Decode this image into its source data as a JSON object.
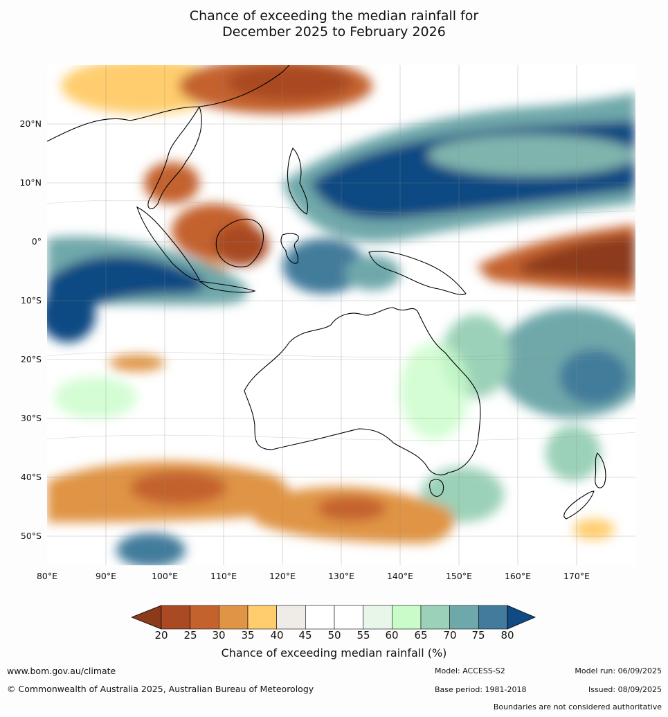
{
  "title": {
    "line1": "Chance of exceeding the median rainfall for",
    "line2": "December 2025 to February 2026"
  },
  "map": {
    "region": "Australia and surrounding region",
    "lat_labels": [
      "20°N",
      "10°N",
      "0°",
      "10°S",
      "20°S",
      "30°S",
      "40°S",
      "50°S"
    ],
    "lon_labels": [
      "80°E",
      "90°E",
      "100°E",
      "110°E",
      "120°E",
      "130°E",
      "140°E",
      "150°E",
      "160°E",
      "170°E"
    ],
    "lat_range": [
      -55,
      30
    ],
    "lon_range": [
      80,
      180
    ],
    "grid": true
  },
  "legend": {
    "ticks": [
      "20",
      "25",
      "30",
      "35",
      "40",
      "45",
      "50",
      "55",
      "60",
      "65",
      "70",
      "75",
      "80"
    ],
    "colors": [
      "#a94a24",
      "#c4622e",
      "#e09445",
      "#ffcd6e",
      "#efebe7",
      "#ffffff",
      "#ffffff",
      "#e8f5e9",
      "#c9fcc9",
      "#9bd1b8",
      "#6fa8aa",
      "#427b9b"
    ],
    "under_color": "#8c3a1c",
    "over_color": "#0f4a82",
    "label": "Chance of exceeding median rainfall (%)"
  },
  "footer": {
    "website": "www.bom.gov.au/climate",
    "copyright": "© Commonwealth of Australia 2025, Australian Bureau of Meteorology",
    "model": "Model: ACCESS-S2",
    "base_period": "Base period: 1981-2018",
    "model_run": "Model run: 06/09/2025",
    "issued": "Issued: 08/09/2025",
    "disclaimer": "Boundaries are not considered authoritative"
  }
}
